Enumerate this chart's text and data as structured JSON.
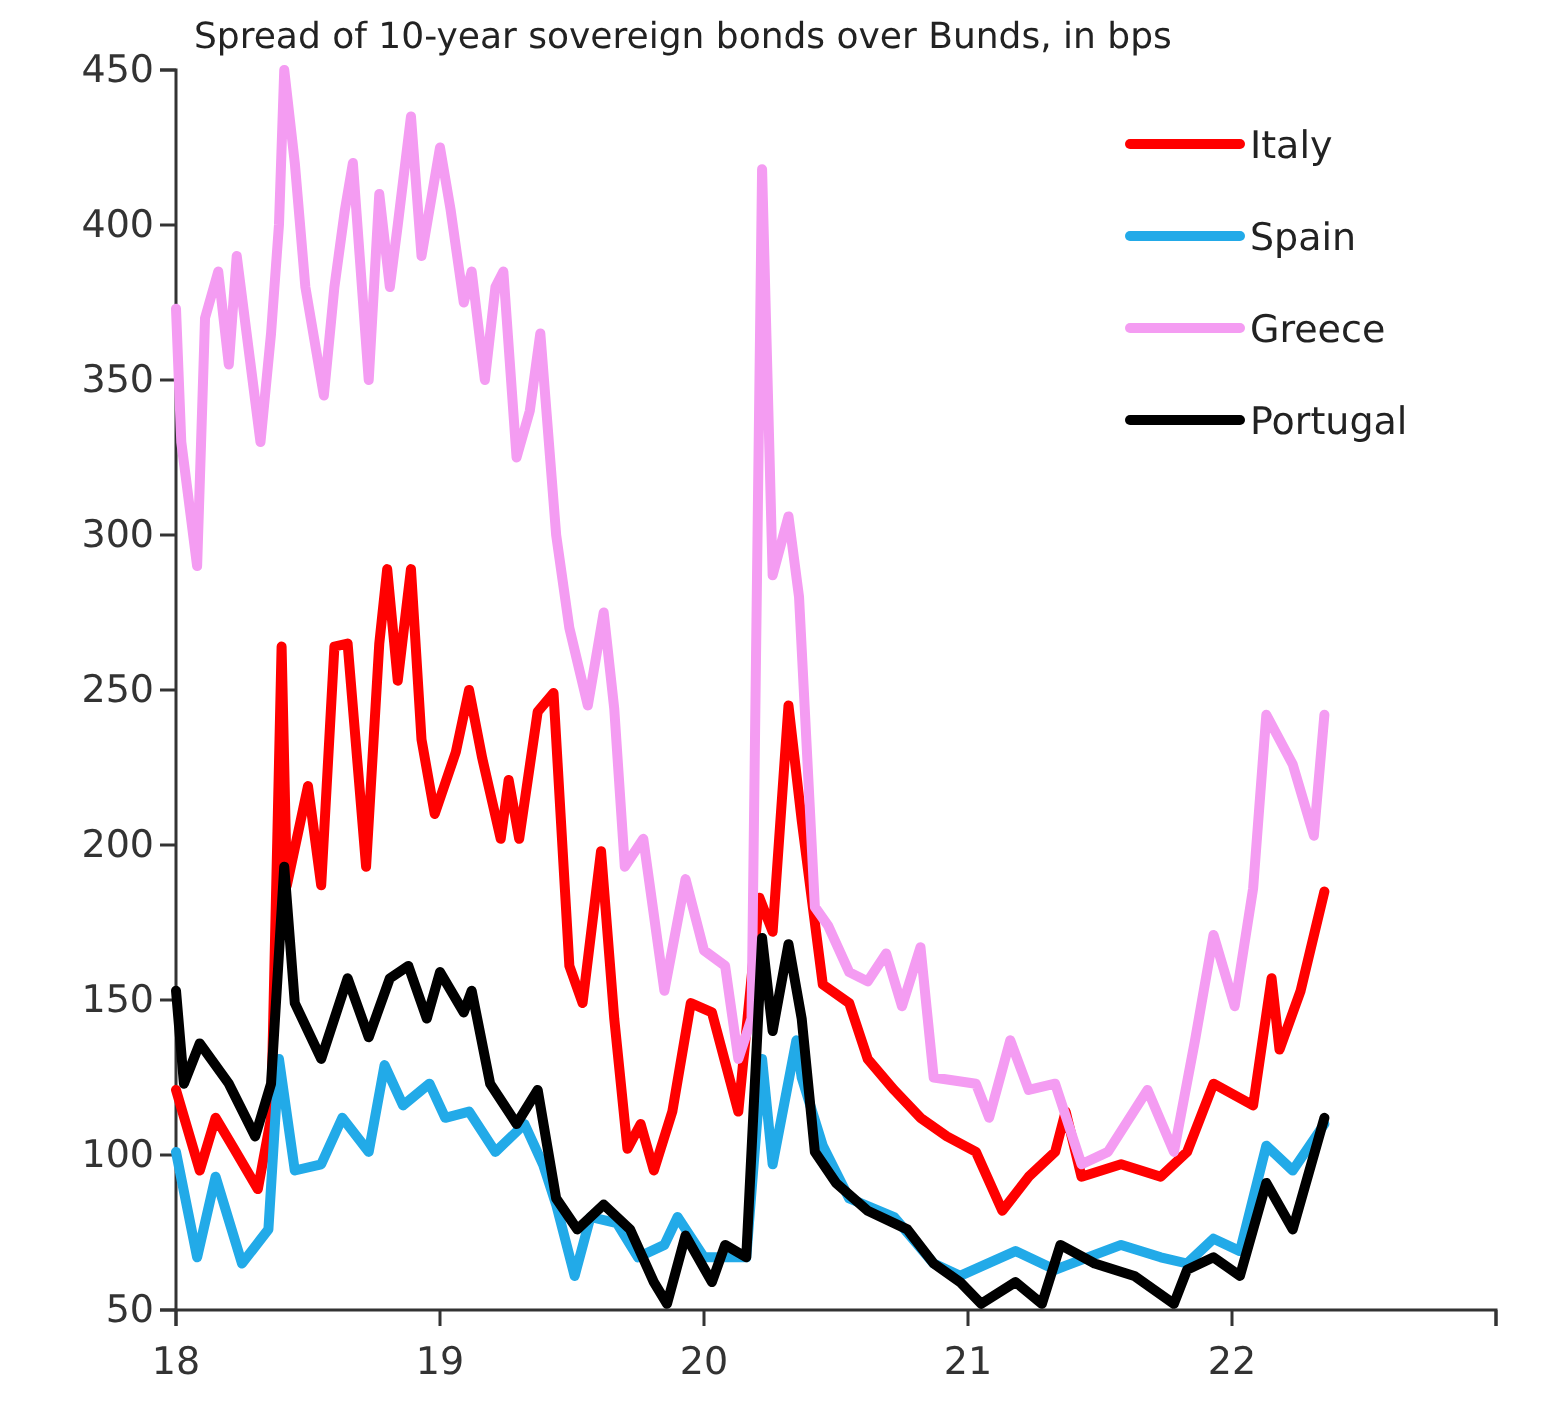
{
  "chart_data": {
    "type": "line",
    "title": "Spread of 10-year sovereign bonds over Bunds, in bps",
    "xlim": [
      18,
      23
    ],
    "xticks": [
      18,
      19,
      20,
      21,
      22,
      {
        "value": 23,
        "label": null
      }
    ],
    "ylim": [
      50,
      450
    ],
    "yticks": [
      50,
      100,
      150,
      200,
      250,
      300,
      350,
      400,
      450
    ],
    "grid": false,
    "legend": "top right",
    "line_style": "solid",
    "marker": "none",
    "series": [
      {
        "name": "Italy",
        "color": "#ff0000",
        "x": [
          18.0,
          18.09,
          18.15,
          18.22,
          18.31,
          18.36,
          18.4,
          18.42,
          18.5,
          18.55,
          18.6,
          18.65,
          18.72,
          18.77,
          18.8,
          18.84,
          18.89,
          18.93,
          18.98,
          19.06,
          19.11,
          19.16,
          19.23,
          19.26,
          19.3,
          19.37,
          19.43,
          19.49,
          19.54,
          19.61,
          19.66,
          19.71,
          19.76,
          19.81,
          19.88,
          19.95,
          20.03,
          20.13,
          20.21,
          20.26,
          20.32,
          20.37,
          20.45,
          20.55,
          20.62,
          20.72,
          20.82,
          20.92,
          21.03,
          21.13,
          21.23,
          21.33,
          21.37,
          21.43,
          21.58,
          21.73,
          21.83,
          21.93,
          22.08,
          22.15,
          22.18,
          22.26,
          22.35
        ],
        "values": [
          121,
          95,
          112,
          102,
          89,
          112,
          264,
          187,
          219,
          187,
          264,
          265,
          193,
          265,
          289,
          253,
          289,
          234,
          210,
          230,
          250,
          228,
          202,
          221,
          202,
          243,
          249,
          161,
          149,
          198,
          144,
          102,
          110,
          95,
          114,
          149,
          146,
          114,
          183,
          172,
          245,
          208,
          155,
          149,
          131,
          121,
          112,
          106,
          101,
          82,
          93,
          101,
          114,
          93,
          97,
          93,
          101,
          123,
          116,
          157,
          134,
          153,
          185
        ]
      },
      {
        "name": "Spain",
        "color": "#22aae8",
        "x": [
          18.0,
          18.08,
          18.15,
          18.25,
          18.35,
          18.39,
          18.45,
          18.55,
          18.63,
          18.73,
          18.79,
          18.86,
          18.96,
          19.02,
          19.11,
          19.21,
          19.32,
          19.39,
          19.44,
          19.51,
          19.57,
          19.67,
          19.75,
          19.85,
          19.9,
          20.0,
          20.16,
          20.22,
          20.26,
          20.35,
          20.37,
          20.45,
          20.55,
          20.72,
          20.87,
          20.97,
          21.18,
          21.33,
          21.58,
          21.73,
          21.83,
          21.93,
          22.03,
          22.13,
          22.23,
          22.35
        ],
        "values": [
          101,
          67,
          93,
          65,
          76,
          131,
          95,
          97,
          112,
          101,
          129,
          116,
          123,
          112,
          114,
          101,
          110,
          97,
          84,
          61,
          80,
          78,
          67,
          71,
          80,
          67,
          67,
          131,
          97,
          137,
          125,
          103,
          86,
          80,
          65,
          61,
          69,
          63,
          71,
          67,
          65,
          73,
          69,
          103,
          95,
          110
        ]
      },
      {
        "name": "Greece",
        "color": "#f49cf2",
        "x": [
          18.0,
          18.02,
          18.08,
          18.11,
          18.16,
          18.2,
          18.23,
          18.32,
          18.36,
          18.39,
          18.41,
          18.45,
          18.49,
          18.56,
          18.6,
          18.64,
          18.67,
          18.73,
          18.77,
          18.81,
          18.84,
          18.89,
          18.93,
          19.0,
          19.04,
          19.09,
          19.12,
          19.17,
          19.21,
          19.24,
          19.29,
          19.34,
          19.38,
          19.44,
          19.49,
          19.56,
          19.62,
          19.66,
          19.7,
          19.77,
          19.85,
          19.93,
          20.0,
          20.08,
          20.13,
          20.18,
          20.22,
          20.26,
          20.32,
          20.36,
          20.42,
          20.47,
          20.55,
          20.62,
          20.69,
          20.75,
          20.82,
          20.87,
          21.03,
          21.08,
          21.16,
          21.23,
          21.33,
          21.43,
          21.53,
          21.68,
          21.78,
          21.86,
          21.93,
          22.01,
          22.08,
          22.13,
          22.23,
          22.31,
          22.35
        ],
        "values": [
          373,
          330,
          290,
          370,
          385,
          355,
          390,
          330,
          365,
          400,
          450,
          420,
          380,
          345,
          380,
          405,
          420,
          350,
          410,
          380,
          400,
          435,
          390,
          425,
          405,
          375,
          385,
          350,
          380,
          385,
          325,
          340,
          365,
          300,
          270,
          245,
          275,
          244,
          193,
          202,
          153,
          189,
          166,
          161,
          131,
          144,
          418,
          287,
          306,
          280,
          180,
          174,
          159,
          156,
          165,
          148,
          167,
          125,
          123,
          112,
          137,
          121,
          123,
          97,
          101,
          121,
          101,
          137,
          171,
          148,
          186,
          242,
          226,
          203,
          242
        ]
      },
      {
        "name": "Portugal",
        "color": "#000000",
        "x": [
          18.0,
          18.03,
          18.09,
          18.2,
          18.3,
          18.36,
          18.41,
          18.45,
          18.55,
          18.65,
          18.73,
          18.81,
          18.88,
          18.95,
          19.0,
          19.09,
          19.12,
          19.19,
          19.29,
          19.37,
          19.44,
          19.52,
          19.62,
          19.72,
          19.81,
          19.86,
          19.93,
          20.03,
          20.08,
          20.16,
          20.22,
          20.26,
          20.32,
          20.37,
          20.42,
          20.5,
          20.62,
          20.77,
          20.87,
          20.97,
          21.05,
          21.18,
          21.28,
          21.35,
          21.48,
          21.63,
          21.78,
          21.83,
          21.93,
          22.03,
          22.13,
          22.23,
          22.35
        ],
        "values": [
          153,
          123,
          136,
          123,
          106,
          123,
          193,
          149,
          131,
          157,
          138,
          157,
          161,
          144,
          159,
          146,
          153,
          123,
          110,
          121,
          86,
          76,
          84,
          76,
          59,
          52,
          74,
          59,
          71,
          67,
          170,
          140,
          168,
          144,
          101,
          91,
          82,
          76,
          65,
          59,
          52,
          59,
          52,
          71,
          65,
          61,
          52,
          63,
          67,
          61,
          91,
          76,
          112
        ]
      }
    ]
  }
}
